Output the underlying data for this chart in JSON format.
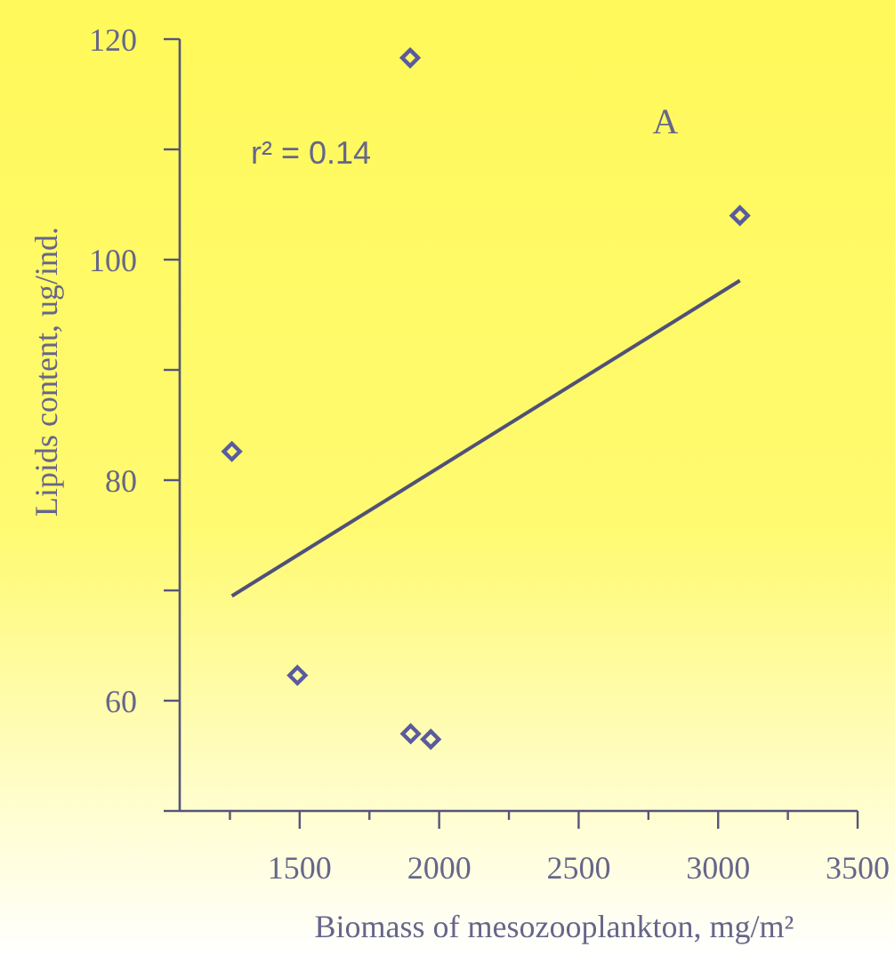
{
  "chart_data": {
    "type": "scatter",
    "xlabel": "Biomass of mesozooplankton, mg/m²",
    "ylabel": "Lipids content, ug/ind.",
    "grid": false,
    "xlim": [
      1070,
      3500
    ],
    "ylim": [
      50,
      120
    ],
    "xticks": [
      {
        "value": 1250,
        "label": null
      },
      1500,
      {
        "value": 1750,
        "label": null
      },
      2000,
      {
        "value": 2250,
        "label": null
      },
      2500,
      {
        "value": 2750,
        "label": null
      },
      3000,
      {
        "value": 3250,
        "label": null
      },
      3500
    ],
    "yticks": [
      {
        "value": 50,
        "label": null
      },
      60,
      {
        "value": 70,
        "label": null
      },
      80,
      {
        "value": 90,
        "label": null
      },
      100,
      {
        "value": 110,
        "label": null
      },
      120
    ],
    "annotations": [
      "r² = 0.14",
      "A"
    ],
    "series": [
      {
        "marker": "diamond",
        "color": "#5a5a9e",
        "x": [
          1257,
          1492,
          1898,
          1970,
          1896,
          3078
        ],
        "values": [
          82.6,
          62.3,
          57.0,
          56.5,
          118.3,
          104.0
        ]
      },
      {
        "type": "line",
        "color": "#50507a",
        "x": [
          1257,
          3078
        ],
        "values": [
          69.5,
          98.1
        ]
      }
    ]
  }
}
